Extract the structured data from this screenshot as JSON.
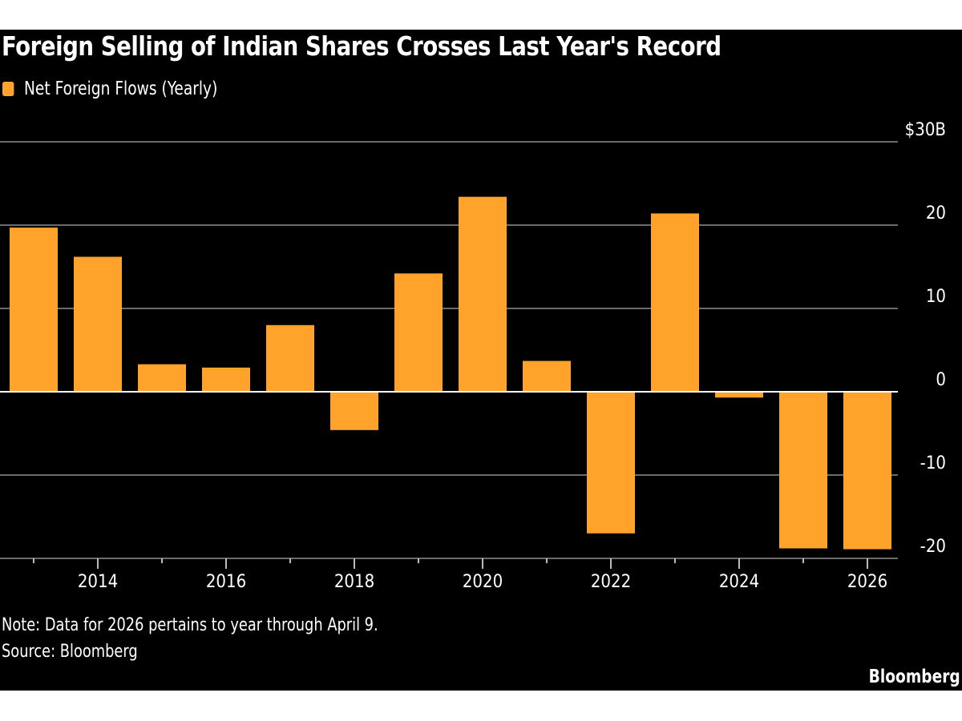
{
  "chart_data": {
    "type": "bar",
    "title": "Foreign Selling of Indian Shares Crosses Last Year's Record",
    "legend": "top-left",
    "series": [
      {
        "name": "Net Foreign Flows (Yearly)",
        "color": "#ffa32b"
      }
    ],
    "categories": [
      2013,
      2014,
      2015,
      2016,
      2017,
      2018,
      2019,
      2020,
      2021,
      2022,
      2023,
      2024,
      2025,
      2026
    ],
    "values": [
      19.7,
      16.2,
      3.3,
      2.9,
      8.0,
      -4.6,
      14.2,
      23.4,
      3.7,
      -17.0,
      21.4,
      -0.7,
      -18.8,
      -18.9
    ],
    "x_tick_labels": [
      "2014",
      "2016",
      "2018",
      "2020",
      "2022",
      "2024",
      "2026"
    ],
    "y_ticks": [
      30,
      20,
      10,
      0,
      -10,
      -20
    ],
    "y_tick_labels": [
      "$30B",
      "20",
      "10",
      "0",
      "-10",
      "-20"
    ],
    "ylim": [
      -20,
      30
    ],
    "grid": true,
    "y_axis_position": "right",
    "xlabel": "",
    "ylabel": ""
  },
  "note": "Note: Data for 2026 pertains to year through April 9.",
  "source": "Source: Bloomberg",
  "brand": "Bloomberg"
}
